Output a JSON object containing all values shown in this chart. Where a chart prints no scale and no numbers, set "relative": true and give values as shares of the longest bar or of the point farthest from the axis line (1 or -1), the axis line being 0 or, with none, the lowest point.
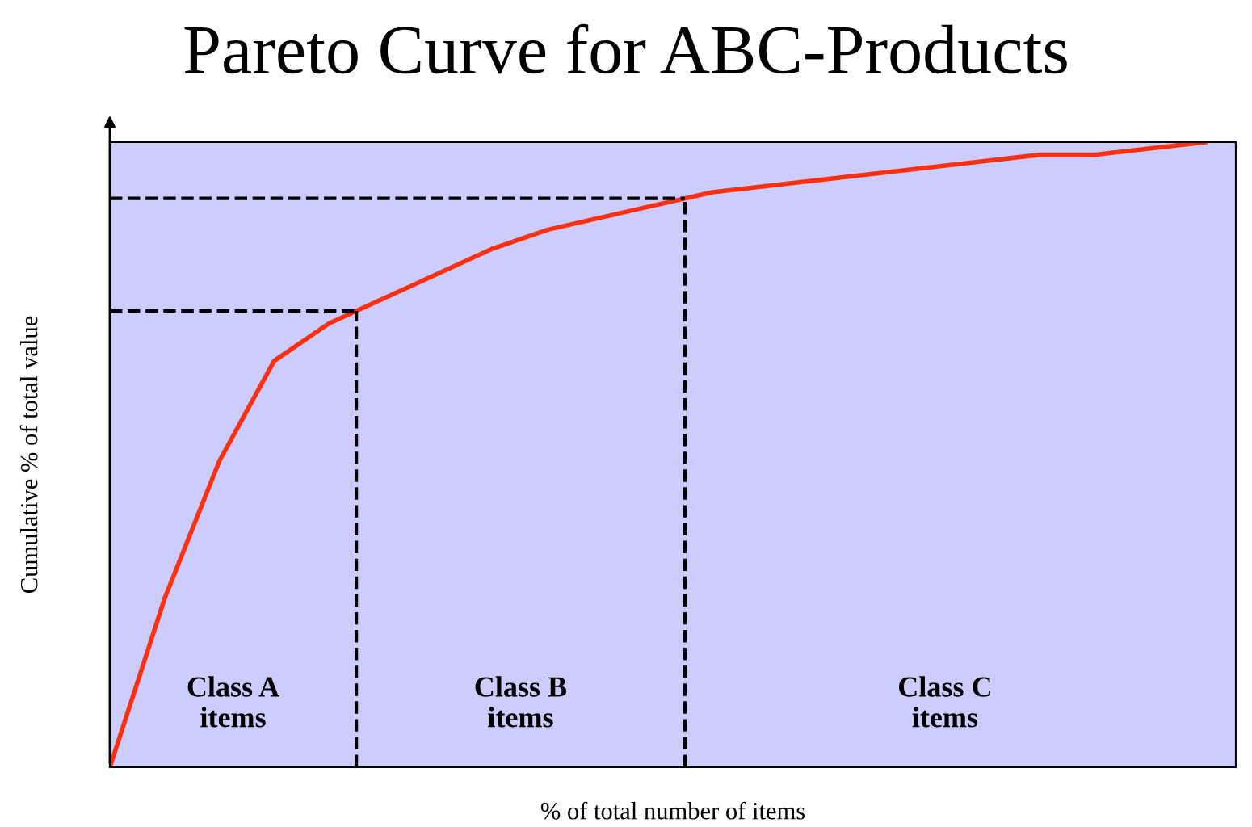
{
  "chart_data": {
    "type": "line",
    "title": "Pareto Curve for ABC-Products",
    "xlabel": "% of total number of items",
    "ylabel": "Cumulative % of total value",
    "relative": true,
    "categories": [
      null,
      null,
      null,
      null,
      null,
      null,
      null,
      null,
      null,
      null,
      null,
      null,
      null,
      null,
      null,
      null,
      null,
      null,
      null,
      null,
      null
    ],
    "series": [
      {
        "color": "#ff3010",
        "values": [
          0,
          0.27,
          0.49,
          0.65,
          0.71,
          0.75,
          0.79,
          0.83,
          0.86,
          0.88,
          0.9,
          0.92,
          0.93,
          0.94,
          0.95,
          0.96,
          0.97,
          0.98,
          0.98,
          0.99,
          1
        ]
      }
    ],
    "ref_lines": [
      {
        "axis": "y",
        "value": 0.73,
        "color": "#000000",
        "line_style": "dashed"
      },
      {
        "axis": "y",
        "value": 0.91,
        "color": "#000000",
        "line_style": "dashed"
      }
    ],
    "annotations": [
      "Class A\nitems",
      "Class B\nitems",
      "Class C\nitems"
    ],
    "grid": false,
    "legend": false,
    "marker": "none",
    "line_style": "solid"
  }
}
